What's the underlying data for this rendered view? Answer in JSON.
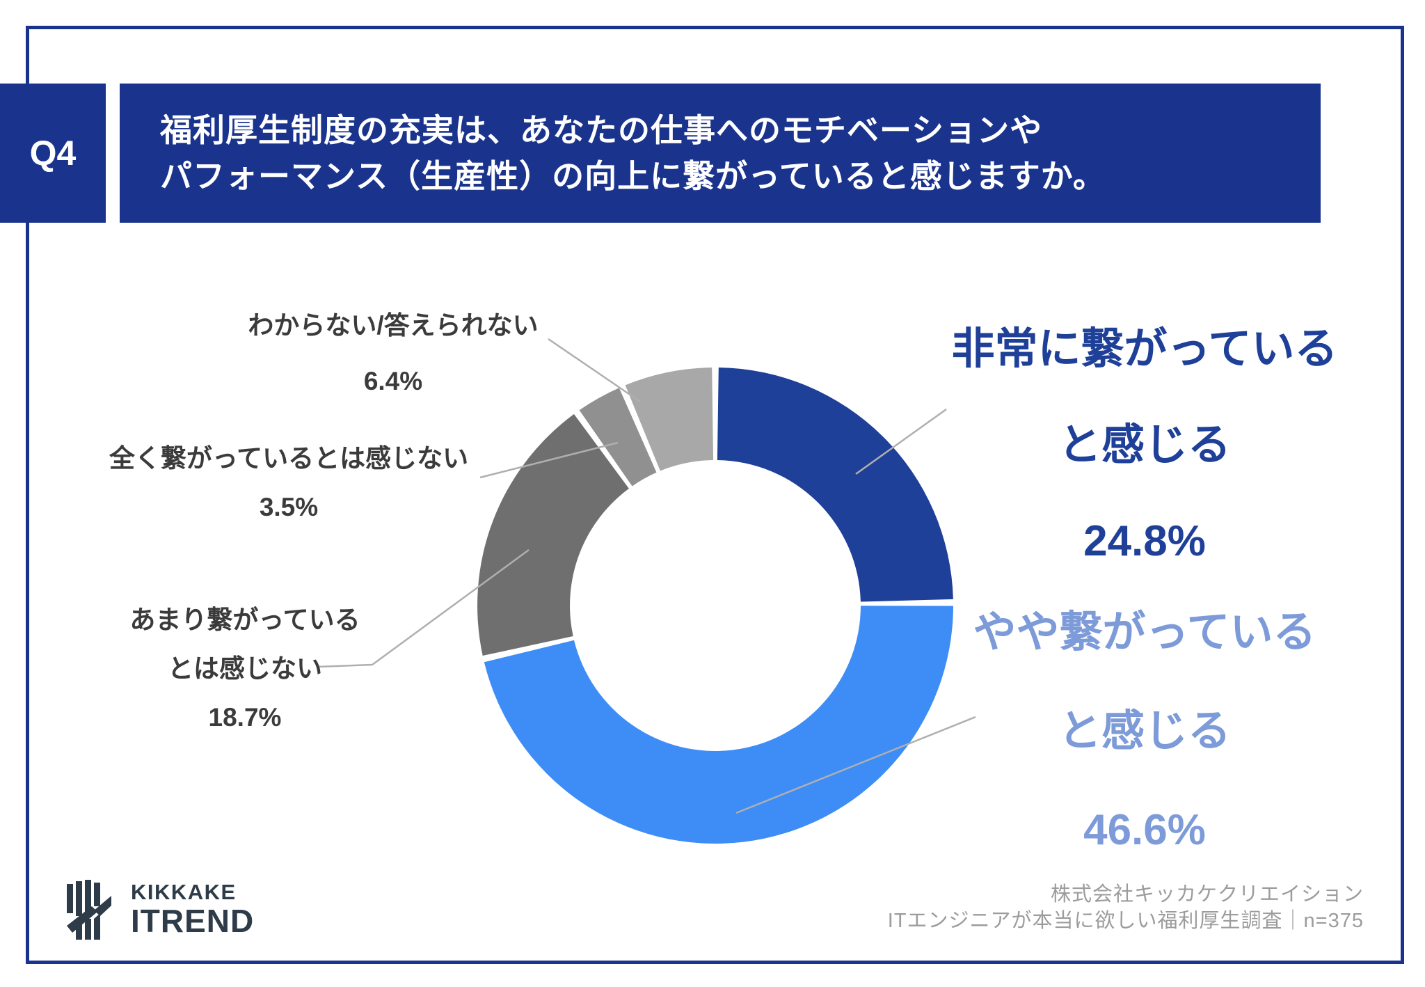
{
  "header": {
    "question_number": "Q4",
    "question_line1": "福利厚生制度の充実は、あなたの仕事へのモチベーションや",
    "question_line2": "パフォーマンス（生産性）の向上に繋がっていると感じますか。"
  },
  "chart_data": {
    "type": "pie",
    "subtype": "donut",
    "title": "福利厚生制度の充実は、あなたの仕事へのモチベーションやパフォーマンス（生産性）の向上に繋がっていると感じますか。",
    "unit": "%",
    "start_angle_deg": 0,
    "direction": "clockwise",
    "donut_hole_ratio": 0.61,
    "segments": [
      {
        "label": "非常に繋がっていると感じる",
        "value": 24.8,
        "color": "#1F4098"
      },
      {
        "label": "やや繋がっていると感じる",
        "value": 46.6,
        "color": "#3E8DF6"
      },
      {
        "label": "あまり繋がっているとは感じない",
        "value": 18.7,
        "color": "#6F6F6F"
      },
      {
        "label": "全く繋がっているとは感じない",
        "value": 3.5,
        "color": "#909090"
      },
      {
        "label": "わからない/答えられない",
        "value": 6.4,
        "color": "#A8A8A8"
      }
    ]
  },
  "callouts": {
    "very": {
      "line1": "非常に繋がっている",
      "line2": "と感じる",
      "pct": "24.8%"
    },
    "somewhat": {
      "line1": "やや繋がっている",
      "line2": "と感じる",
      "pct": "46.6%"
    },
    "not_much": {
      "line1": "あまり繋がっている",
      "line2": "とは感じない",
      "pct": "18.7%"
    },
    "not_at_all": {
      "line1": "全く繋がっているとは感じない",
      "pct": "3.5%"
    },
    "unknown": {
      "line1": "わからない/答えられない",
      "pct": "6.4%"
    }
  },
  "footer": {
    "logo_line1": "KIKKAKE",
    "logo_line2": "ITREND",
    "credit_line1": "株式会社キッカケクリエイション",
    "credit_line2": "ITエンジニアが本当に欲しい福利厚生調査｜n=375"
  },
  "colors": {
    "navy": "#1A338C",
    "slice_dark_blue": "#1F4098",
    "slice_light_blue": "#3E8DF6",
    "slice_dark_gray": "#6F6F6F",
    "slice_mid_gray": "#909090",
    "slice_light_gray": "#A8A8A8",
    "callout_light_blue_text": "#7D9AD9",
    "leader_line": "#AFAFAF",
    "credit_gray": "#9C9C9C",
    "logo_slate": "#2E3B49"
  }
}
